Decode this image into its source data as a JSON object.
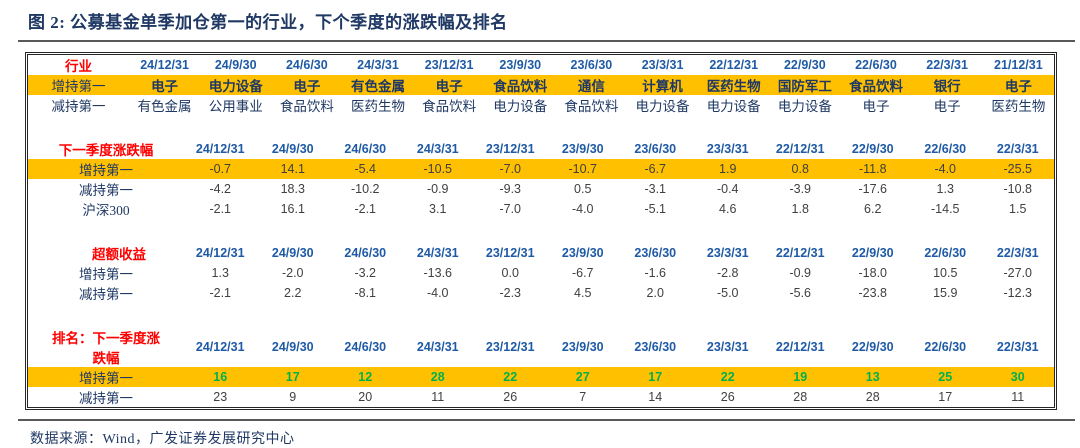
{
  "title": "图 2: 公募基金单季加仓第一的行业，下个季度的涨跌幅及排名",
  "footer": {
    "source": "数据来源：Wind，广发证券发展研究中心"
  },
  "colors": {
    "navy": "#1F3864",
    "date_blue": "#1F5AA5",
    "label_red": "#FF0000",
    "hl_yellow": "#FFC000",
    "rank_green": "#00B050",
    "num_gray": "#404040",
    "rule_gray": "#595959",
    "frame_black": "#262626"
  },
  "table": {
    "sections": [
      {
        "id": "industry",
        "label": "行业",
        "label_align": "center",
        "dates": [
          "24/12/31",
          "24/9/30",
          "24/6/30",
          "24/3/31",
          "23/12/31",
          "23/9/30",
          "23/6/30",
          "23/3/31",
          "22/12/31",
          "22/9/30",
          "22/6/30",
          "22/3/31",
          "21/12/31"
        ],
        "rows": [
          {
            "label": "增持第一",
            "highlight": true,
            "value_class": "ind bold",
            "values": [
              "电子",
              "电力设备",
              "电子",
              "有色金属",
              "电子",
              "食品饮料",
              "通信",
              "计算机",
              "医药生物",
              "国防军工",
              "食品饮料",
              "银行",
              "电子"
            ]
          },
          {
            "label": "减持第一",
            "highlight": false,
            "value_class": "ind",
            "values": [
              "有色金属",
              "公用事业",
              "食品饮料",
              "医药生物",
              "食品饮料",
              "电力设备",
              "食品饮料",
              "电力设备",
              "电力设备",
              "电力设备",
              "电子",
              "电子",
              "医药生物"
            ]
          }
        ]
      },
      {
        "id": "next-quarter-change",
        "label": "下一季度涨跌幅",
        "label_align": "left",
        "dates": [
          "24/12/31",
          "24/9/30",
          "24/6/30",
          "24/3/31",
          "23/12/31",
          "23/9/30",
          "23/6/30",
          "23/3/31",
          "22/12/31",
          "22/9/30",
          "22/6/30",
          "22/3/31"
        ],
        "rows": [
          {
            "label": "增持第一",
            "highlight": true,
            "value_class": "num",
            "values": [
              "-0.7",
              "14.1",
              "-5.4",
              "-10.5",
              "-7.0",
              "-10.7",
              "-6.7",
              "1.9",
              "0.8",
              "-11.8",
              "-4.0",
              "-25.5"
            ]
          },
          {
            "label": "减持第一",
            "highlight": false,
            "value_class": "num",
            "values": [
              "-4.2",
              "18.3",
              "-10.2",
              "-0.9",
              "-9.3",
              "0.5",
              "-3.1",
              "-0.4",
              "-3.9",
              "-17.6",
              "1.3",
              "-10.8"
            ]
          },
          {
            "label": "沪深300",
            "highlight": false,
            "value_class": "num",
            "values": [
              "-2.1",
              "16.1",
              "-2.1",
              "3.1",
              "-7.0",
              "-4.0",
              "-5.1",
              "4.6",
              "1.8",
              "6.2",
              "-14.5",
              "1.5"
            ]
          }
        ]
      },
      {
        "id": "excess-return",
        "label": "超额收益",
        "label_align": "left-indent",
        "dates": [
          "24/12/31",
          "24/9/30",
          "24/6/30",
          "24/3/31",
          "23/12/31",
          "23/9/30",
          "23/6/30",
          "23/3/31",
          "22/12/31",
          "22/9/30",
          "22/6/30",
          "22/3/31"
        ],
        "rows": [
          {
            "label": "增持第一",
            "highlight": false,
            "value_class": "num",
            "values": [
              "1.3",
              "-2.0",
              "-3.2",
              "-13.6",
              "0.0",
              "-6.7",
              "-1.6",
              "-2.8",
              "-0.9",
              "-18.0",
              "10.5",
              "-27.0"
            ]
          },
          {
            "label": "减持第一",
            "highlight": false,
            "value_class": "num",
            "values": [
              "-2.1",
              "2.2",
              "-8.1",
              "-4.0",
              "-2.3",
              "4.5",
              "2.0",
              "-5.0",
              "-5.6",
              "-23.8",
              "15.9",
              "-12.3"
            ]
          }
        ]
      },
      {
        "id": "rank-next-quarter-change",
        "label": "排名：下一季度涨",
        "label2": "跌幅",
        "label_align": "left",
        "dates": [
          "24/12/31",
          "24/9/30",
          "24/6/30",
          "24/3/31",
          "23/12/31",
          "23/9/30",
          "23/6/30",
          "23/3/31",
          "22/12/31",
          "22/9/30",
          "22/6/30",
          "22/3/31"
        ],
        "rows": [
          {
            "label": "增持第一",
            "highlight": true,
            "value_class": "num green",
            "values": [
              "16",
              "17",
              "12",
              "28",
              "22",
              "27",
              "17",
              "22",
              "19",
              "13",
              "25",
              "30"
            ]
          },
          {
            "label": "减持第一",
            "highlight": false,
            "value_class": "num",
            "values": [
              "23",
              "9",
              "20",
              "11",
              "26",
              "7",
              "14",
              "26",
              "28",
              "28",
              "17",
              "11"
            ]
          }
        ]
      }
    ]
  }
}
